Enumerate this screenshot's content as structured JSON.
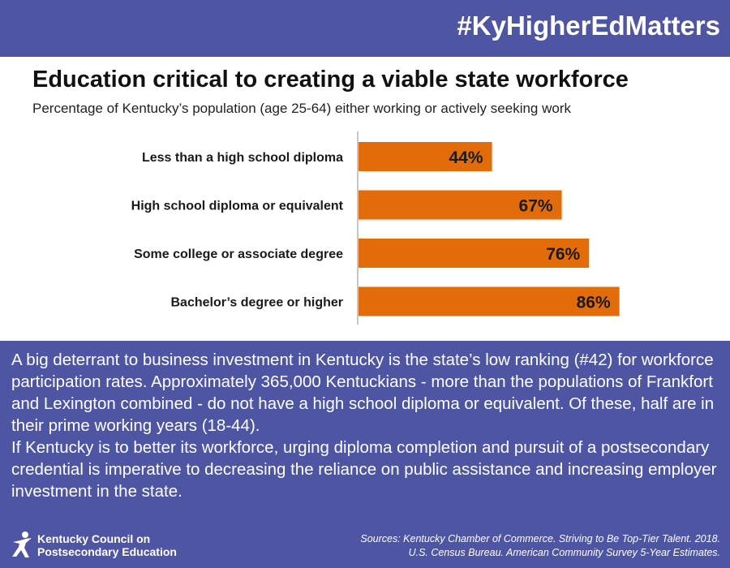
{
  "header": {
    "hashtag": "#KyHigherEdMatters"
  },
  "chart_data": {
    "type": "bar",
    "orientation": "horizontal",
    "title": "Education critical to creating a viable state workforce",
    "subtitle": "Percentage of Kentucky’s population (age 25-64) either working or actively seeking work",
    "categories": [
      "Less than a high school diploma",
      "High school diploma or equivalent",
      "Some college or associate degree",
      "Bachelor’s degree or higher"
    ],
    "values": [
      44,
      67,
      76,
      86
    ],
    "value_labels": [
      "44%",
      "67%",
      "76%",
      "86%"
    ],
    "xlim": [
      0,
      100
    ],
    "grid": false,
    "legend": "none",
    "bar_color": "#e36c0a"
  },
  "body": {
    "paragraph_1": "A big deterrant to business investment in Kentucky is the state’s low ranking (#42) for workforce participation rates. Approximately 365,000 Kentuckians - more than the populations of Frankfort and Lexington combined - do not have a high school diploma or equivalent. Of these, half are in their prime working years (18-44).",
    "paragraph_2": "If Kentucky is to better its workforce, urging diploma completion and pursuit of a postsecondary credential is imperative to decreasing the reliance on public assistance and increasing employer investment in the state."
  },
  "footer": {
    "logo_line_1": "Kentucky Council on",
    "logo_line_2": "Postsecondary Education",
    "logo_icon": "star-figure-icon",
    "sources_line_1": "Sources: Kentucky Chamber of Commerce. Striving to Be Top-Tier Talent. 2018.",
    "sources_line_2": "U.S. Census Bureau. American Community Survey 5-Year Estimates."
  },
  "colors": {
    "brand_blue": "#4e55a3",
    "bar_orange": "#e36c0a"
  }
}
